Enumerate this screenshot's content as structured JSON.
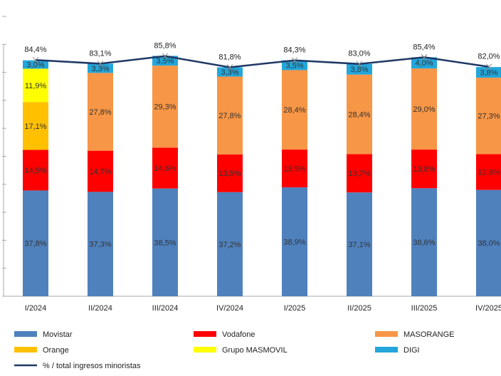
{
  "chart_data": {
    "type": "stacked_bar_line",
    "categories": [
      "I/2024",
      "II/2024",
      "III/2024",
      "IV/2024",
      "I/2025",
      "II/2025",
      "III/2025",
      "IV/2025"
    ],
    "ylim": [
      0,
      100
    ],
    "yticks": [
      0,
      10,
      20,
      30,
      40,
      50,
      60,
      70,
      80,
      90,
      100
    ],
    "grid": false,
    "legend": "bottom",
    "series": [
      {
        "name": "Movistar",
        "color": "#4f81bd",
        "values": [
          37.8,
          37.3,
          38.5,
          37.2,
          38.9,
          37.1,
          38.6,
          38.0
        ],
        "value_labels": [
          "37,8%",
          "37,3%",
          "38,5%",
          "37,2%",
          "38,9%",
          "37,1%",
          "38,6%",
          "38,0%"
        ]
      },
      {
        "name": "Vodafone",
        "color": "#ff0000",
        "values": [
          14.5,
          14.7,
          14.6,
          13.5,
          13.5,
          13.7,
          13.8,
          12.8
        ],
        "value_labels": [
          "14,5%",
          "14,7%",
          "14,6%",
          "13,5%",
          "13,5%",
          "13,7%",
          "13,8%",
          "12,8%"
        ]
      },
      {
        "name": "MASORANGE",
        "color": "#f79646",
        "values": [
          null,
          27.8,
          29.3,
          27.8,
          28.4,
          28.4,
          29.0,
          27.3
        ],
        "value_labels": [
          null,
          "27,8%",
          "29,3%",
          "27,8%",
          "28,4%",
          "28,4%",
          "29,0%",
          "27,3%"
        ]
      },
      {
        "name": "Orange",
        "color": "#ffc000",
        "values": [
          17.1,
          null,
          null,
          null,
          null,
          null,
          null,
          null
        ],
        "value_labels": [
          "17,1%",
          null,
          null,
          null,
          null,
          null,
          null,
          null
        ]
      },
      {
        "name": "Grupo MASMOVIL",
        "color": "#ffff00",
        "values": [
          11.9,
          null,
          null,
          null,
          null,
          null,
          null,
          null
        ],
        "value_labels": [
          "11,9%",
          null,
          null,
          null,
          null,
          null,
          null,
          null
        ]
      },
      {
        "name": "DIGI",
        "color": "#23a6db",
        "values": [
          3.0,
          3.3,
          3.5,
          3.3,
          3.5,
          3.8,
          4.0,
          3.8
        ],
        "value_labels": [
          "3,0%",
          "3,3%",
          "3,5%",
          "3,3%",
          "3,5%",
          "3,8%",
          "4,0%",
          "3,8%"
        ]
      },
      {
        "name": "% / total ingresos minoristas",
        "type": "line",
        "color": "#1f3864",
        "values": [
          84.4,
          83.1,
          85.8,
          81.8,
          84.3,
          83.0,
          85.4,
          82.0
        ],
        "value_labels": [
          "84,4%",
          "83,1%",
          "85,8%",
          "81,8%",
          "84,3%",
          "83,0%",
          "85,4%",
          "82,0%"
        ]
      }
    ]
  }
}
